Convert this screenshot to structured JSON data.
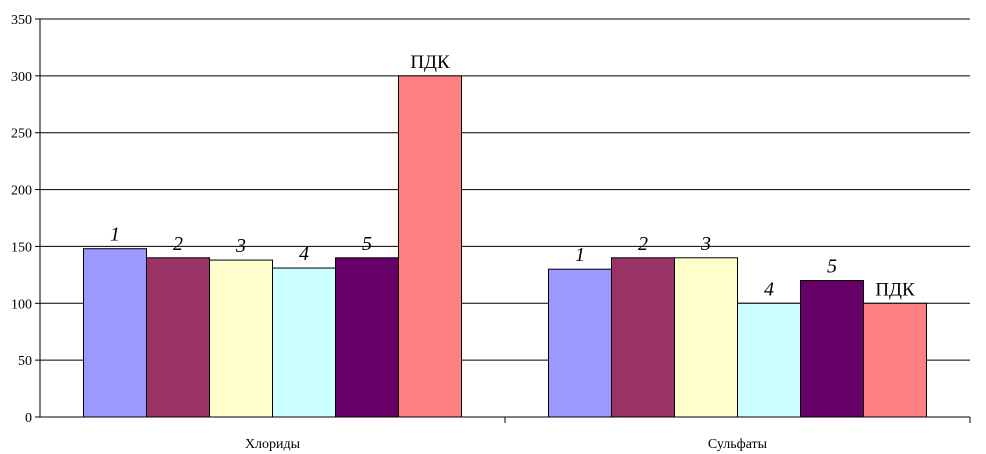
{
  "chart_data": {
    "type": "bar",
    "categories": [
      "Хлориды",
      "Сульфаты"
    ],
    "series": [
      {
        "label": "1",
        "color": "#9999FF",
        "values": [
          148,
          130
        ]
      },
      {
        "label": "2",
        "color": "#993366",
        "values": [
          140,
          140
        ]
      },
      {
        "label": "3",
        "color": "#FFFFCC",
        "values": [
          138,
          140
        ]
      },
      {
        "label": "4",
        "color": "#CCFFFF",
        "values": [
          131,
          100
        ]
      },
      {
        "label": "5",
        "color": "#660066",
        "values": [
          140,
          120
        ]
      },
      {
        "label": "ПДК",
        "color": "#FF8080",
        "values": [
          300,
          100
        ]
      }
    ],
    "ylim": [
      0,
      350
    ],
    "yticks": [
      0,
      50,
      100,
      150,
      200,
      250,
      300,
      350
    ],
    "grid": true,
    "legend": "none"
  }
}
